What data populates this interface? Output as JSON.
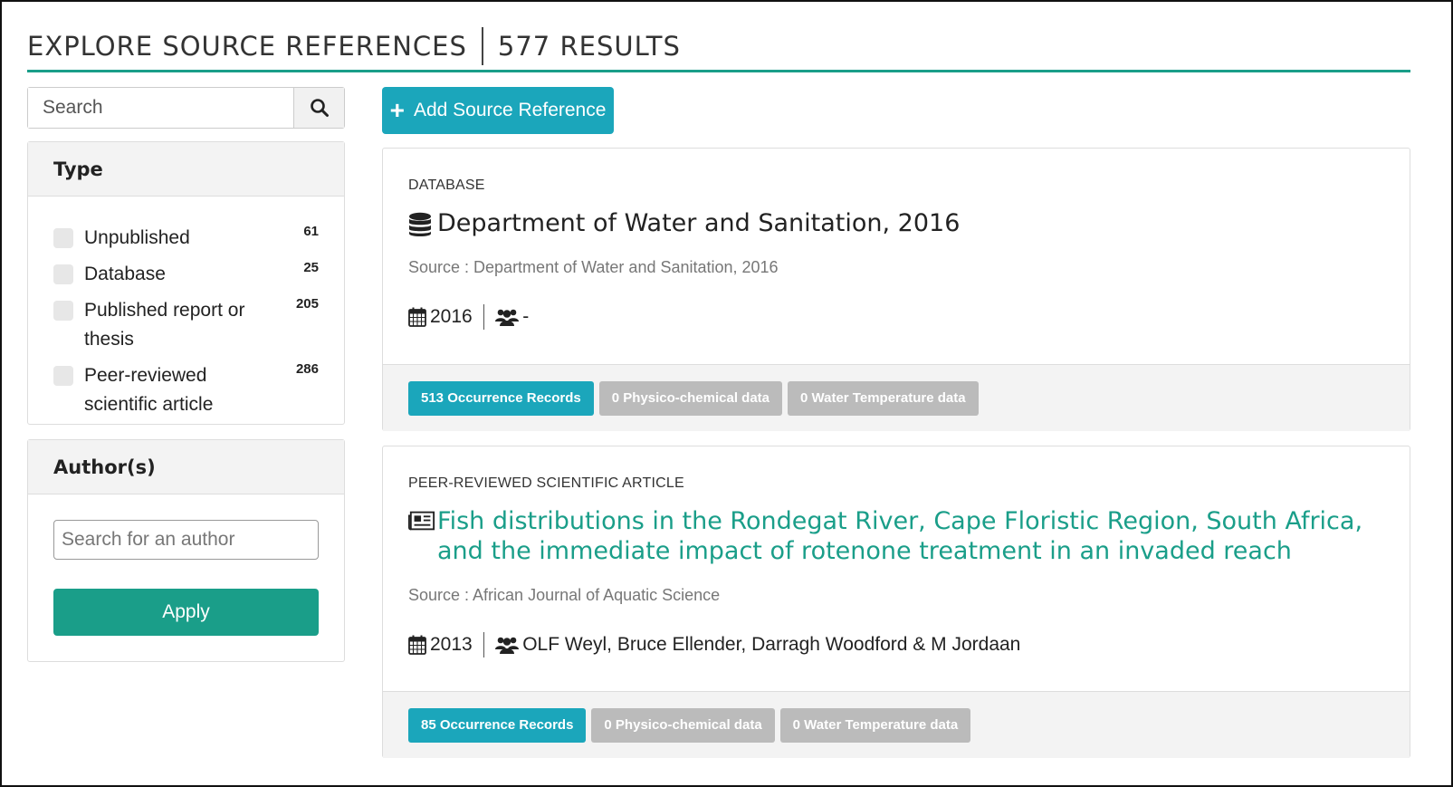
{
  "header": {
    "title": "EXPLORE SOURCE REFERENCES",
    "results": "577 RESULTS"
  },
  "search": {
    "placeholder": "Search"
  },
  "type_filter": {
    "heading": "Type",
    "items": [
      {
        "label": "Unpublished",
        "count": "61"
      },
      {
        "label": "Database",
        "count": "25"
      },
      {
        "label": "Published report or thesis",
        "count": "205"
      },
      {
        "label": "Peer-reviewed scientific article",
        "count": "286"
      }
    ]
  },
  "author_filter": {
    "heading": "Author(s)",
    "placeholder": "Search for an author",
    "apply_label": "Apply"
  },
  "toolbar": {
    "add_label": "Add Source Reference"
  },
  "results": [
    {
      "type": "DATABASE",
      "icon": "database-icon",
      "title": "Department of Water and Sanitation, 2016",
      "title_is_link": false,
      "source": "Source : Department of Water and Sanitation, 2016",
      "year": "2016",
      "authors": "-",
      "badges": [
        {
          "label": "513 Occurrence Records",
          "active": true
        },
        {
          "label": "0 Physico-chemical data",
          "active": false
        },
        {
          "label": "0 Water Temperature data",
          "active": false
        }
      ]
    },
    {
      "type": "PEER-REVIEWED SCIENTIFIC ARTICLE",
      "icon": "newspaper-icon",
      "title": "Fish distributions in the Rondegat River, Cape Floristic Region, South Africa, and the immediate impact of rotenone treatment in an invaded reach",
      "title_is_link": true,
      "source": "Source : African Journal of Aquatic Science",
      "year": "2013",
      "authors": "OLF Weyl, Bruce Ellender, Darragh Woodford & M Jordaan",
      "badges": [
        {
          "label": "85 Occurrence Records",
          "active": true
        },
        {
          "label": "0 Physico-chemical data",
          "active": false
        },
        {
          "label": "0 Water Temperature data",
          "active": false
        }
      ]
    }
  ],
  "colors": {
    "accent_green": "#1a9e89",
    "accent_teal": "#1ba6bb",
    "badge_grey": "#bbbbbb"
  }
}
